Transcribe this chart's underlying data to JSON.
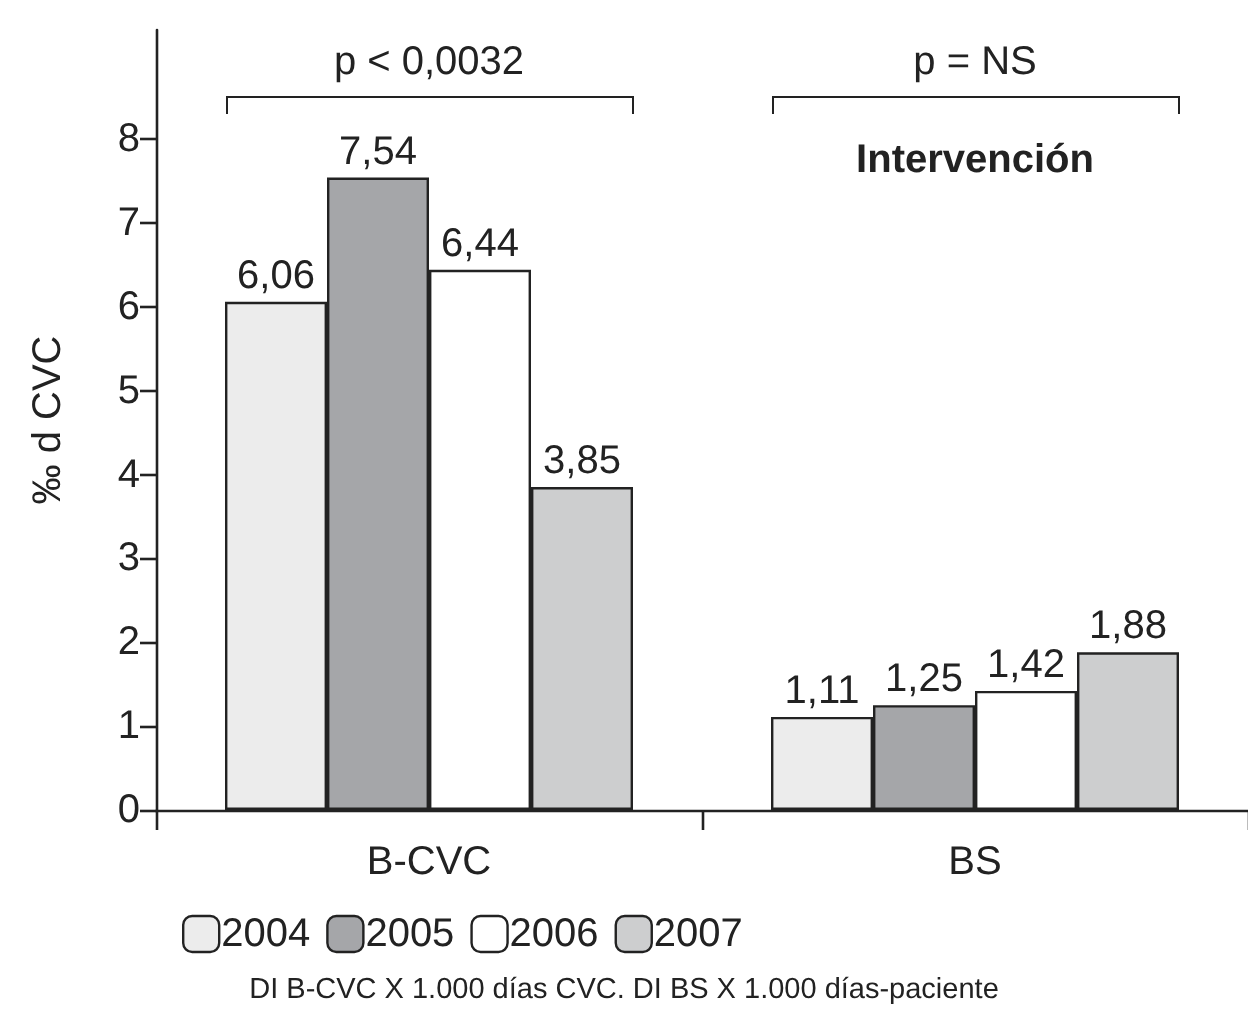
{
  "chart_data": {
    "type": "bar",
    "categories": [
      "B-CVC",
      "BS"
    ],
    "series": [
      {
        "name": "2004",
        "color": "#ececec",
        "values": [
          6.06,
          1.11
        ],
        "value_labels": [
          "6,06",
          "1,11"
        ]
      },
      {
        "name": "2005",
        "color": "#a5a6a9",
        "values": [
          7.54,
          1.25
        ],
        "value_labels": [
          "7,54",
          "1,25"
        ]
      },
      {
        "name": "2006",
        "color": "#ffffff",
        "values": [
          6.44,
          1.42
        ],
        "value_labels": [
          "6,44",
          "1,42"
        ]
      },
      {
        "name": "2007",
        "color": "#cdcecf",
        "values": [
          3.85,
          1.88
        ],
        "value_labels": [
          "3,85",
          "1,88"
        ]
      }
    ],
    "ylabel": "‰ d CVC",
    "ylim": [
      0,
      9.3
    ],
    "yticks": [
      0,
      1,
      2,
      3,
      4,
      5,
      6,
      7,
      8
    ],
    "grid": false,
    "legend": "bottom",
    "annotations": [
      "p < 0,0032",
      "p = NS",
      "Intervención",
      "DI B-CVC X 1.000 días CVC. DI BS X 1.000 días-paciente"
    ]
  }
}
